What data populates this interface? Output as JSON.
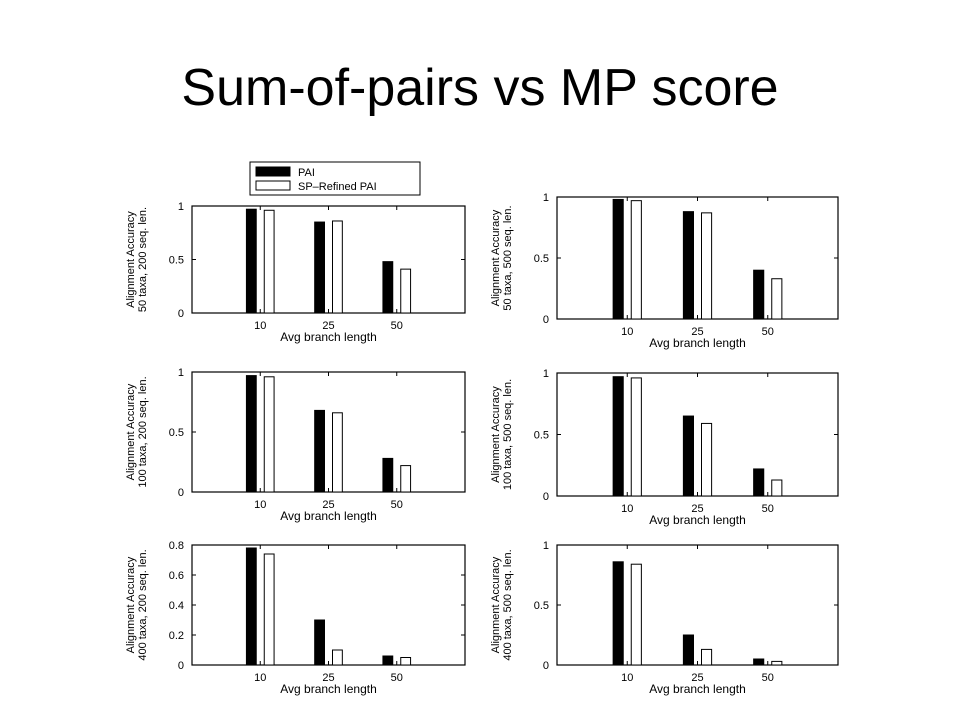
{
  "slide": {
    "title": "Sum-of-pairs vs MP score"
  },
  "legend": {
    "entries": [
      "PAI",
      "SP–Refined PAI"
    ]
  },
  "colors": {
    "PAI": "#000000",
    "SP–Refined PAI": "#ffffff",
    "axis": "#000000"
  },
  "chart_data": [
    {
      "type": "bar",
      "categories": [
        "10",
        "25",
        "50"
      ],
      "xlabel": "Avg branch length",
      "ylabel": [
        "Alignment Accuracy",
        "50 taxa, 200 seq. len."
      ],
      "ylim": [
        0,
        1
      ],
      "yticks": [
        "0",
        "0.5",
        "1"
      ],
      "ytick_values": [
        0,
        0.5,
        1
      ],
      "series": [
        {
          "name": "PAI",
          "values": [
            0.97,
            0.85,
            0.48
          ]
        },
        {
          "name": "SP–Refined PAI",
          "values": [
            0.96,
            0.86,
            0.41
          ]
        }
      ]
    },
    {
      "type": "bar",
      "categories": [
        "10",
        "25",
        "50"
      ],
      "xlabel": "Avg branch length",
      "ylabel": [
        "Alignment Accuracy",
        "50 taxa, 500 seq. len."
      ],
      "ylim": [
        0,
        1
      ],
      "yticks": [
        "0",
        "0.5",
        "1"
      ],
      "ytick_values": [
        0,
        0.5,
        1
      ],
      "series": [
        {
          "name": "PAI",
          "values": [
            0.98,
            0.88,
            0.4
          ]
        },
        {
          "name": "SP–Refined PAI",
          "values": [
            0.97,
            0.87,
            0.33
          ]
        }
      ]
    },
    {
      "type": "bar",
      "categories": [
        "10",
        "25",
        "50"
      ],
      "xlabel": "Avg branch length",
      "ylabel": [
        "Alignment Accuracy",
        "100 taxa, 200 seq. len."
      ],
      "ylim": [
        0,
        1
      ],
      "yticks": [
        "0",
        "0.5",
        "1"
      ],
      "ytick_values": [
        0,
        0.5,
        1
      ],
      "series": [
        {
          "name": "PAI",
          "values": [
            0.97,
            0.68,
            0.28
          ]
        },
        {
          "name": "SP–Refined PAI",
          "values": [
            0.96,
            0.66,
            0.22
          ]
        }
      ]
    },
    {
      "type": "bar",
      "categories": [
        "10",
        "25",
        "50"
      ],
      "xlabel": "Avg branch length",
      "ylabel": [
        "Alignment Accuracy",
        "100 taxa, 500 seq. len."
      ],
      "ylim": [
        0,
        1
      ],
      "yticks": [
        "0",
        "0.5",
        "1"
      ],
      "ytick_values": [
        0,
        0.5,
        1
      ],
      "series": [
        {
          "name": "PAI",
          "values": [
            0.97,
            0.65,
            0.22
          ]
        },
        {
          "name": "SP–Refined PAI",
          "values": [
            0.96,
            0.59,
            0.13
          ]
        }
      ]
    },
    {
      "type": "bar",
      "categories": [
        "10",
        "25",
        "50"
      ],
      "xlabel": "Avg branch length",
      "ylabel": [
        "Alignment Accuracy",
        "400 taxa, 200 seq. len."
      ],
      "ylim": [
        0,
        0.8
      ],
      "yticks": [
        "0",
        "0.2",
        "0.4",
        "0.6",
        "0.8"
      ],
      "ytick_values": [
        0,
        0.2,
        0.4,
        0.6,
        0.8
      ],
      "series": [
        {
          "name": "PAI",
          "values": [
            0.78,
            0.3,
            0.06
          ]
        },
        {
          "name": "SP–Refined PAI",
          "values": [
            0.74,
            0.1,
            0.05
          ]
        }
      ]
    },
    {
      "type": "bar",
      "categories": [
        "10",
        "25",
        "50"
      ],
      "xlabel": "Avg branch length",
      "ylabel": [
        "Alignment Accuracy",
        "400 taxa, 500 seq. len."
      ],
      "ylim": [
        0,
        1
      ],
      "yticks": [
        "0",
        "0.5",
        "1"
      ],
      "ytick_values": [
        0,
        0.5,
        1
      ],
      "series": [
        {
          "name": "PAI",
          "values": [
            0.86,
            0.25,
            0.05
          ]
        },
        {
          "name": "SP–Refined PAI",
          "values": [
            0.84,
            0.13,
            0.03
          ]
        }
      ]
    }
  ]
}
